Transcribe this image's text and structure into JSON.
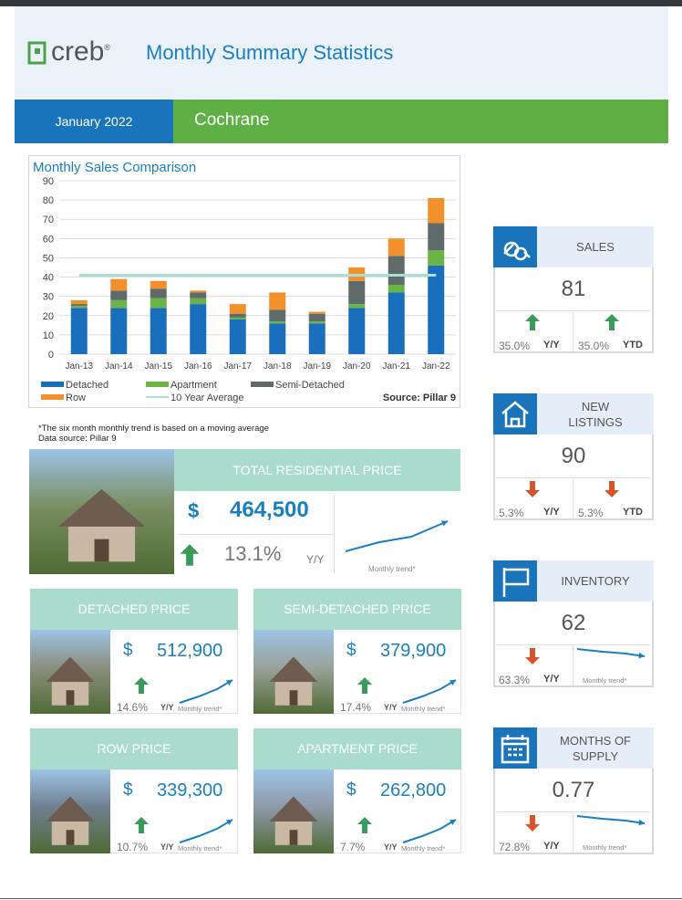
{
  "header": {
    "logo": "creb",
    "logo_mark": "®",
    "title": "Monthly Summary Statistics",
    "period": "January 2022",
    "area": "Cochrane"
  },
  "chart_data": {
    "type": "bar",
    "stacked": true,
    "title": "Monthly Sales Comparison",
    "categories": [
      "Jan-13",
      "Jan-14",
      "Jan-15",
      "Jan-16",
      "Jan-17",
      "Jan-18",
      "Jan-19",
      "Jan-20",
      "Jan-21",
      "Jan-22"
    ],
    "series": [
      {
        "name": "Detached",
        "color": "#1a6fbd",
        "values": [
          24,
          24,
          24,
          26,
          18,
          16,
          16,
          24,
          32,
          46
        ]
      },
      {
        "name": "Apartment",
        "color": "#6ab446",
        "values": [
          1,
          4,
          5,
          3,
          1,
          1,
          1,
          2,
          4,
          8
        ]
      },
      {
        "name": "Semi-Detached",
        "color": "#5f6b6a",
        "values": [
          1,
          5,
          5,
          3,
          2,
          6,
          4,
          12,
          15,
          14
        ]
      },
      {
        "name": "Row",
        "color": "#f2912c",
        "values": [
          2,
          6,
          4,
          1,
          5,
          9,
          1,
          7,
          9,
          13
        ]
      },
      {
        "name": "10 Year Average",
        "type": "line",
        "color": "#a9dfd4",
        "values": [
          41,
          41,
          41,
          41,
          41,
          41,
          41,
          41,
          41,
          41
        ]
      }
    ],
    "ylim": [
      0,
      90
    ],
    "yticks": [
      0,
      10,
      20,
      30,
      40,
      50,
      60,
      70,
      80,
      90
    ],
    "grid": true,
    "source": "Source: Pillar 9"
  },
  "notes": [
    "*The six month monthly trend is based on a moving average",
    "Data source: Pillar 9"
  ],
  "total_price": {
    "label": "TOTAL RESIDENTIAL PRICE",
    "currency": "$",
    "value": "464,500",
    "change": "13.1%",
    "period": "Y/Y",
    "trend_label": "Monthly trend*"
  },
  "prices": [
    {
      "label": "DETACHED PRICE",
      "currency": "$",
      "value": "512,900",
      "change": "14.6%",
      "period": "Y/Y",
      "trend_label": "Monthly trend*"
    },
    {
      "label": "SEMI-DETACHED PRICE",
      "currency": "$",
      "value": "379,900",
      "change": "17.4%",
      "period": "Y/Y",
      "trend_label": "Monthly trend*"
    },
    {
      "label": "ROW PRICE",
      "currency": "$",
      "value": "339,300",
      "change": "10.7%",
      "period": "Y/Y",
      "trend_label": "Monthly trend*"
    },
    {
      "label": "APARTMENT PRICE",
      "currency": "$",
      "value": "262,800",
      "change": "7.7%",
      "period": "Y/Y",
      "trend_label": "Monthly trend*"
    }
  ],
  "stats": [
    {
      "label": "SALES",
      "value": "81",
      "changes": [
        {
          "value": "35.0%",
          "period": "Y/Y"
        },
        {
          "value": "35.0%",
          "period": "YTD"
        }
      ]
    },
    {
      "label": "NEW LISTINGS",
      "value": "90",
      "changes": [
        {
          "value": "5.3%",
          "period": "Y/Y"
        },
        {
          "value": "5.3%",
          "period": "YTD"
        }
      ]
    },
    {
      "label": "INVENTORY",
      "value": "62",
      "changes": [
        {
          "value": "63.3%",
          "period": "Y/Y"
        }
      ],
      "trend_label": "Monthly trend*"
    },
    {
      "label": "MONTHS OF SUPPLY",
      "value": "0.77",
      "changes": [
        {
          "value": "72.8%",
          "period": "Y/Y"
        }
      ],
      "trend_label": "Monthly trend*"
    }
  ]
}
